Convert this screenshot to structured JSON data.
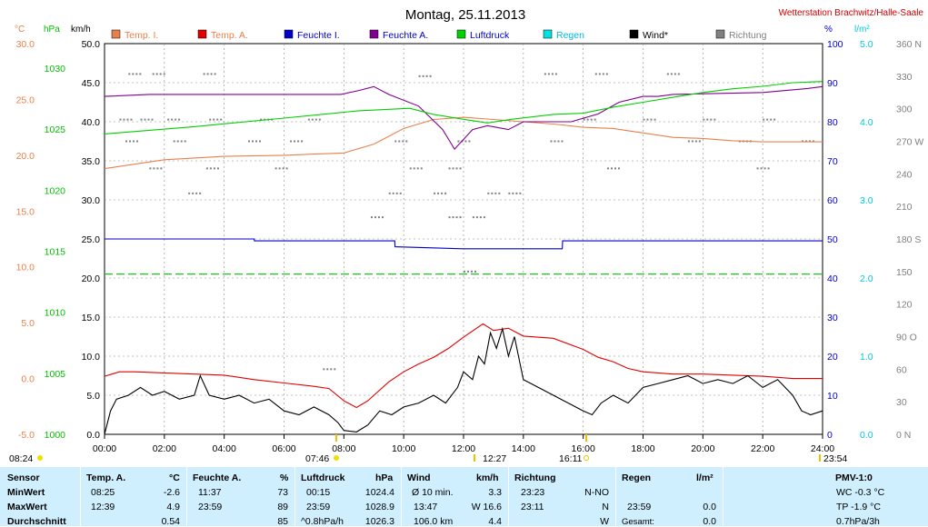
{
  "title": "Montag, 25.11.2013",
  "station": "Wetterstation Brachwitz/Halle-Saale",
  "colors": {
    "temp_i": "#e8804c",
    "temp_a": "#e00000",
    "feuchte_i": "#0000c8",
    "feuchte_a": "#800090",
    "luftdruck": "#00d000",
    "regen": "#00e0e0",
    "wind": "#000000",
    "richtung": "#808080",
    "table_bg": "#cfefff"
  },
  "chart_data": {
    "type": "line",
    "x_ticks": [
      "00:00",
      "02:00",
      "04:00",
      "06:00",
      "08:00",
      "10:00",
      "12:00",
      "14:00",
      "16:00",
      "18:00",
      "20:00",
      "22:00",
      "24:00"
    ],
    "xlim_hours": [
      0,
      24
    ],
    "legend": [
      "Temp. I.",
      "Temp. A.",
      "Feuchte I.",
      "Feuchte A.",
      "Luftdruck",
      "Regen",
      "Wind*",
      "Richtung"
    ],
    "axes": {
      "temp": {
        "unit": "°C",
        "ticks": [
          "30.0",
          "25.0",
          "20.0",
          "15.0",
          "10.0",
          "5.0",
          "0.0",
          "-5.0"
        ],
        "range": [
          -5,
          30
        ]
      },
      "pressure": {
        "unit": "hPa",
        "ticks": [
          "1030",
          "1025",
          "1020",
          "1015",
          "1010",
          "1005",
          "1000"
        ],
        "range": [
          1000,
          1032
        ]
      },
      "wind": {
        "unit": "km/h",
        "ticks": [
          "50.0",
          "45.0",
          "40.0",
          "35.0",
          "30.0",
          "25.0",
          "20.0",
          "15.0",
          "10.0",
          "5.0",
          "0.0"
        ],
        "range": [
          0,
          50
        ]
      },
      "humidity": {
        "unit": "%",
        "ticks": [
          "100",
          "90",
          "80",
          "70",
          "60",
          "50",
          "40",
          "30",
          "20",
          "10",
          "0"
        ],
        "range": [
          0,
          100
        ]
      },
      "rain": {
        "unit": "l/m²",
        "ticks": [
          "5.0",
          "4.0",
          "3.0",
          "2.0",
          "1.0",
          "0.0"
        ],
        "range": [
          0,
          5
        ]
      },
      "direction": {
        "unit": "",
        "ticks": [
          "360 N",
          "330",
          "300",
          "270 W",
          "240",
          "210",
          "180 S",
          "150",
          "120",
          "90 O",
          "60",
          "30",
          "0 N"
        ],
        "range": [
          0,
          360
        ]
      }
    },
    "series": [
      {
        "name": "Temp. I.",
        "axis": "temp",
        "points": [
          [
            0,
            18.8
          ],
          [
            2,
            19.6
          ],
          [
            4,
            19.9
          ],
          [
            6,
            20.0
          ],
          [
            7,
            20.1
          ],
          [
            8,
            20.2
          ],
          [
            9,
            21.0
          ],
          [
            10,
            22.4
          ],
          [
            11,
            23.2
          ],
          [
            12,
            23.4
          ],
          [
            13,
            23.2
          ],
          [
            14,
            23.0
          ],
          [
            15,
            22.8
          ],
          [
            16,
            22.5
          ],
          [
            17,
            22.4
          ],
          [
            18,
            22.0
          ],
          [
            19,
            21.6
          ],
          [
            20,
            21.5
          ],
          [
            21,
            21.3
          ],
          [
            22,
            21.2
          ],
          [
            23,
            21.2
          ],
          [
            24,
            21.2
          ]
        ]
      },
      {
        "name": "Temp. A.",
        "axis": "temp",
        "points": [
          [
            0,
            0.2
          ],
          [
            0.5,
            0.6
          ],
          [
            1,
            0.6
          ],
          [
            2,
            0.5
          ],
          [
            3,
            0.4
          ],
          [
            4,
            0.3
          ],
          [
            5,
            -0.1
          ],
          [
            6,
            -0.4
          ],
          [
            7,
            -0.7
          ],
          [
            7.5,
            -0.9
          ],
          [
            8,
            -2.0
          ],
          [
            8.42,
            -2.6
          ],
          [
            8.8,
            -2.0
          ],
          [
            9.5,
            -0.3
          ],
          [
            10,
            0.6
          ],
          [
            10.5,
            1.3
          ],
          [
            11,
            1.9
          ],
          [
            11.5,
            2.7
          ],
          [
            12,
            3.7
          ],
          [
            12.65,
            4.9
          ],
          [
            13,
            4.3
          ],
          [
            13.5,
            4.5
          ],
          [
            14,
            3.8
          ],
          [
            15,
            3.6
          ],
          [
            16,
            2.6
          ],
          [
            16.5,
            1.9
          ],
          [
            17,
            1.5
          ],
          [
            17.5,
            0.9
          ],
          [
            18,
            0.6
          ],
          [
            19,
            0.4
          ],
          [
            20,
            0.4
          ],
          [
            21,
            0.3
          ],
          [
            22,
            0.2
          ],
          [
            23,
            0.0
          ],
          [
            24,
            0.0
          ]
        ]
      },
      {
        "name": "Feuchte I.",
        "axis": "humidity",
        "points": [
          [
            0,
            50
          ],
          [
            5,
            50
          ],
          [
            5.01,
            49.5
          ],
          [
            9.7,
            49.5
          ],
          [
            9.71,
            48
          ],
          [
            12,
            47.5
          ],
          [
            15.3,
            47.5
          ],
          [
            15.31,
            49.5
          ],
          [
            24,
            49.5
          ]
        ]
      },
      {
        "name": "Feuchte A.",
        "axis": "humidity",
        "points": [
          [
            0,
            86.5
          ],
          [
            1.5,
            87
          ],
          [
            5,
            87
          ],
          [
            7.9,
            87
          ],
          [
            8.5,
            88
          ],
          [
            9,
            89
          ],
          [
            9.5,
            87
          ],
          [
            10.5,
            84
          ],
          [
            11.3,
            78
          ],
          [
            11.7,
            73
          ],
          [
            12.3,
            78
          ],
          [
            12.8,
            79
          ],
          [
            13.5,
            78
          ],
          [
            14,
            80
          ],
          [
            15,
            80
          ],
          [
            15.6,
            80
          ],
          [
            16.5,
            82
          ],
          [
            17.2,
            85
          ],
          [
            18,
            86.5
          ],
          [
            18.5,
            86.5
          ],
          [
            19,
            87
          ],
          [
            22,
            87.5
          ],
          [
            23.5,
            88.5
          ],
          [
            24,
            89
          ]
        ]
      },
      {
        "name": "Luftdruck",
        "axis": "pressure",
        "points": [
          [
            0,
            1024.6
          ],
          [
            3,
            1025.2
          ],
          [
            6,
            1025.9
          ],
          [
            8.5,
            1026.5
          ],
          [
            10.2,
            1026.7
          ],
          [
            11,
            1026.2
          ],
          [
            12,
            1025.8
          ],
          [
            12.8,
            1025.5
          ],
          [
            13.6,
            1025.8
          ],
          [
            15,
            1026.2
          ],
          [
            16,
            1026.3
          ],
          [
            17,
            1026.8
          ],
          [
            18,
            1027.2
          ],
          [
            19,
            1027.6
          ],
          [
            20,
            1028.0
          ],
          [
            21,
            1028.3
          ],
          [
            22,
            1028.5
          ],
          [
            23,
            1028.8
          ],
          [
            23.99,
            1028.9
          ]
        ]
      },
      {
        "name": "Regen",
        "axis": "rain",
        "points": [
          [
            0,
            2.05
          ],
          [
            24,
            2.05
          ]
        ]
      },
      {
        "name": "Wind*",
        "axis": "wind",
        "points": [
          [
            0,
            0
          ],
          [
            0.2,
            3
          ],
          [
            0.4,
            4.5
          ],
          [
            0.8,
            5
          ],
          [
            1.2,
            6
          ],
          [
            1.6,
            5
          ],
          [
            2,
            5.5
          ],
          [
            2.5,
            4.5
          ],
          [
            3,
            5
          ],
          [
            3.2,
            7.5
          ],
          [
            3.5,
            5
          ],
          [
            4,
            4.5
          ],
          [
            4.5,
            5
          ],
          [
            5,
            4
          ],
          [
            5.5,
            4.5
          ],
          [
            6,
            3
          ],
          [
            6.5,
            2.5
          ],
          [
            7,
            3.5
          ],
          [
            7.5,
            2.5
          ],
          [
            7.8,
            1.5
          ],
          [
            8,
            0.5
          ],
          [
            8.42,
            0.3
          ],
          [
            8.8,
            1.2
          ],
          [
            9.2,
            3
          ],
          [
            9.6,
            2.5
          ],
          [
            10,
            3.5
          ],
          [
            10.5,
            4
          ],
          [
            11,
            5
          ],
          [
            11.4,
            4
          ],
          [
            11.8,
            6
          ],
          [
            12,
            8
          ],
          [
            12.3,
            7
          ],
          [
            12.5,
            10
          ],
          [
            12.7,
            9
          ],
          [
            12.9,
            13
          ],
          [
            13.1,
            11
          ],
          [
            13.3,
            13.5
          ],
          [
            13.5,
            10
          ],
          [
            13.7,
            12.5
          ],
          [
            14,
            7
          ],
          [
            14.5,
            6
          ],
          [
            15,
            5
          ],
          [
            15.5,
            4
          ],
          [
            16,
            3
          ],
          [
            16.3,
            2.5
          ],
          [
            16.6,
            4
          ],
          [
            17,
            5
          ],
          [
            17.5,
            4
          ],
          [
            18,
            6
          ],
          [
            18.5,
            6.5
          ],
          [
            19,
            7
          ],
          [
            19.5,
            7.5
          ],
          [
            20,
            6.5
          ],
          [
            20.5,
            7
          ],
          [
            21,
            6.5
          ],
          [
            21.5,
            7.5
          ],
          [
            22,
            6
          ],
          [
            22.5,
            7
          ],
          [
            23,
            5
          ],
          [
            23.3,
            3
          ],
          [
            23.6,
            2.5
          ],
          [
            24,
            3
          ]
        ]
      }
    ],
    "direction_dots": [
      {
        "h": 0.8,
        "deg": 332
      },
      {
        "h": 1.6,
        "deg": 332
      },
      {
        "h": 3.3,
        "deg": 332
      },
      {
        "h": 18.8,
        "deg": 332
      },
      {
        "h": 10.5,
        "deg": 330
      },
      {
        "h": 14.7,
        "deg": 332
      },
      {
        "h": 16.4,
        "deg": 332
      },
      {
        "h": 0.5,
        "deg": 290
      },
      {
        "h": 1.2,
        "deg": 290
      },
      {
        "h": 2.1,
        "deg": 290
      },
      {
        "h": 3.5,
        "deg": 290
      },
      {
        "h": 5.2,
        "deg": 290
      },
      {
        "h": 6.8,
        "deg": 290
      },
      {
        "h": 16,
        "deg": 290
      },
      {
        "h": 18,
        "deg": 290
      },
      {
        "h": 20,
        "deg": 290
      },
      {
        "h": 22,
        "deg": 290
      },
      {
        "h": 0.7,
        "deg": 270
      },
      {
        "h": 2.3,
        "deg": 270
      },
      {
        "h": 4.8,
        "deg": 270
      },
      {
        "h": 6.2,
        "deg": 270
      },
      {
        "h": 9.7,
        "deg": 270
      },
      {
        "h": 11.8,
        "deg": 270
      },
      {
        "h": 14.9,
        "deg": 270
      },
      {
        "h": 19.5,
        "deg": 270
      },
      {
        "h": 21.2,
        "deg": 270
      },
      {
        "h": 23.3,
        "deg": 270
      },
      {
        "h": 1.5,
        "deg": 245
      },
      {
        "h": 3.4,
        "deg": 245
      },
      {
        "h": 5.7,
        "deg": 245
      },
      {
        "h": 10.2,
        "deg": 245
      },
      {
        "h": 11.5,
        "deg": 245
      },
      {
        "h": 16.8,
        "deg": 245
      },
      {
        "h": 21.8,
        "deg": 245
      },
      {
        "h": 2.8,
        "deg": 222
      },
      {
        "h": 9.5,
        "deg": 222
      },
      {
        "h": 11,
        "deg": 222
      },
      {
        "h": 12.8,
        "deg": 222
      },
      {
        "h": 13.5,
        "deg": 222
      },
      {
        "h": 8.9,
        "deg": 200
      },
      {
        "h": 11.5,
        "deg": 200
      },
      {
        "h": 12.3,
        "deg": 200
      },
      {
        "h": 12,
        "deg": 150
      },
      {
        "h": 7.3,
        "deg": 60
      }
    ]
  },
  "markers": {
    "sunrise": "08:24",
    "sunset": "23:54",
    "min_time": "07:46",
    "max_time": "12:27",
    "other_time": "16:11"
  },
  "table": {
    "row_labels": [
      "Sensor",
      "MinWert",
      "MaxWert",
      "Durchschnitt"
    ],
    "temp": {
      "header": "Temp. A.",
      "unit": "°C",
      "min_time": "08:25",
      "min": "-2.6",
      "max_time": "12:39",
      "max": "4.9",
      "avg": "0.54"
    },
    "feuchte": {
      "header": "Feuchte A.",
      "unit": "%",
      "min_time": "11:37",
      "min": "73",
      "max_time": "23:59",
      "max": "89",
      "avg": "85"
    },
    "luft": {
      "header": "Luftdruck",
      "unit": "hPa",
      "min_time": "00:15",
      "min": "1024.4",
      "max_time": "23:59",
      "max": "1028.9",
      "trend": "^0.8hPa/h",
      "avg": "1026.3"
    },
    "wind": {
      "header": "Wind",
      "unit": "km/h",
      "r1a": "Ø 10 min.",
      "r1b": "3.3",
      "r2a": "13:47",
      "r2b": "W 16.6",
      "r3a": "106.0 km",
      "r3b": "4.4"
    },
    "richtung": {
      "header": "Richtung",
      "r1a": "23:23",
      "r1b": "N-NO",
      "r2a": "23:11",
      "r2b": "N",
      "r3b": "W"
    },
    "regen": {
      "header": "Regen",
      "unit": "l/m²",
      "r2a": "23:59",
      "r2b": "0.0",
      "r3a": "Gesamt:",
      "r3b": "0.0"
    },
    "pmv": {
      "header": "PMV-1:0",
      "r1": "WC -0.3 °C",
      "r2": "TP -1.9 °C",
      "r3": "0.7hPa/3h"
    }
  }
}
